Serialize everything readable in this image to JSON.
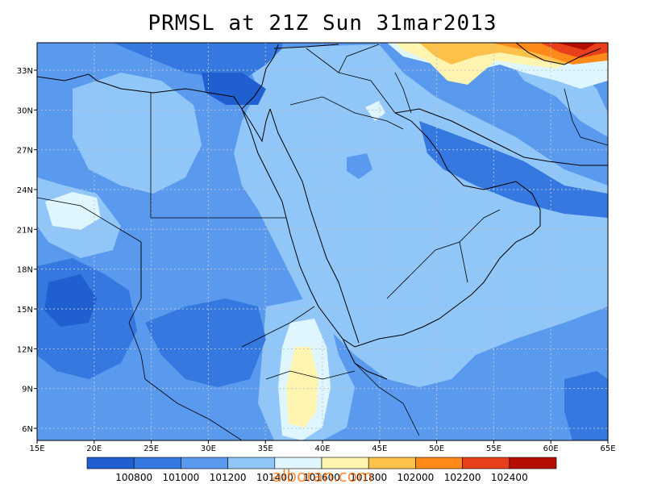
{
  "title": "PRMSL at 21Z Sun 31mar2013",
  "watermark": "alboran.com",
  "colors": {
    "frame": "#000000",
    "grid": "#b8c4d6",
    "coast": "#000000",
    "border": "#000000"
  },
  "x_ticks": [
    "15E",
    "20E",
    "25E",
    "30E",
    "35E",
    "40E",
    "45E",
    "50E",
    "55E",
    "60E",
    "65E"
  ],
  "y_ticks": [
    "33N",
    "30N",
    "27N",
    "24N",
    "21N",
    "18N",
    "15N",
    "12N",
    "9N",
    "6N"
  ],
  "colorbar": {
    "labels": [
      "100800",
      "101000",
      "101200",
      "101400",
      "101600",
      "101800",
      "102000",
      "102200",
      "102400"
    ],
    "colors": [
      "#1f5fcf",
      "#3478e0",
      "#5a9aee",
      "#90c6f8",
      "#dff6ff",
      "#fff5b0",
      "#ffc14a",
      "#ff8a1a",
      "#e8401a",
      "#b40e00"
    ]
  }
}
